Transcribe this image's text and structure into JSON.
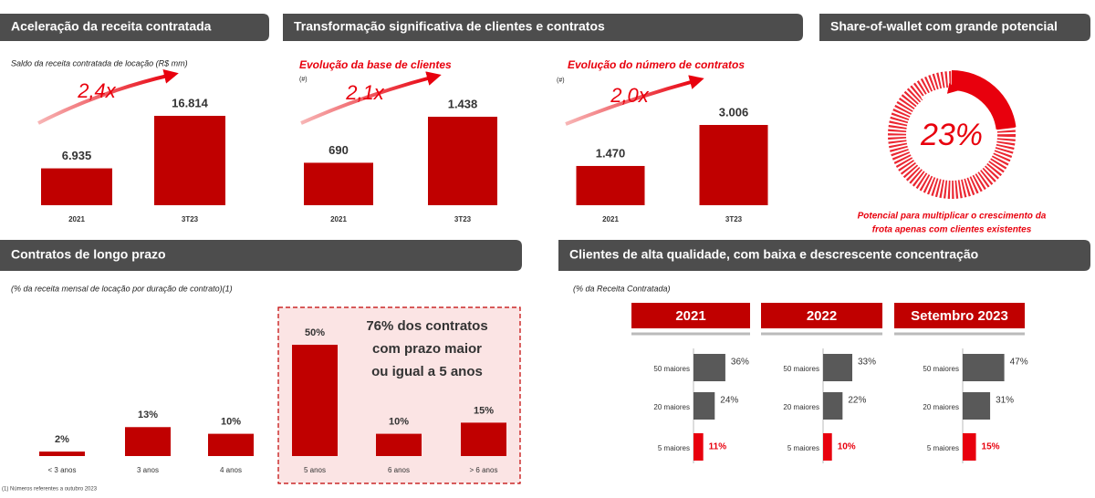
{
  "headers": [
    "Aceleração da receita contratada",
    "Transformação significativa de clientes e contratos",
    "Share-of-wallet com grande potencial",
    "Contratos de longo prazo",
    "Clientes de alta qualidade, com baixa e descrescente concentração"
  ],
  "chart_data": [
    {
      "type": "bar",
      "subtitle": "Saldo da receita contratada de locação (R$ mm)",
      "annotation": "2,4x",
      "categories": [
        "2021",
        "3T23"
      ],
      "values": [
        6935,
        16814
      ],
      "value_labels": [
        "6.935",
        "16.814"
      ],
      "color": "#c00000"
    },
    {
      "type": "bar",
      "subtitle": "Evolução da base de clientes",
      "unit": "(#)",
      "annotation": "2,1x",
      "categories": [
        "2021",
        "3T23"
      ],
      "values": [
        690,
        1438
      ],
      "value_labels": [
        "690",
        "1.438"
      ],
      "color": "#c00000"
    },
    {
      "type": "bar",
      "subtitle": "Evolução do número de contratos",
      "unit": "(#)",
      "annotation": "2,0x",
      "categories": [
        "2021",
        "3T23"
      ],
      "values": [
        1470,
        3006
      ],
      "value_labels": [
        "1.470",
        "3.006"
      ],
      "color": "#c00000"
    },
    {
      "type": "pie",
      "values": [
        23
      ],
      "value_labels": [
        "23%"
      ],
      "color": "#e8000d",
      "caption": [
        "Potencial para multiplicar o crescimento da",
        "frota apenas com clientes existentes"
      ]
    },
    {
      "type": "bar",
      "subtitle": "(% da receita mensal de locação por duração de contrato)(1)",
      "categories": [
        "< 3 anos",
        "3 anos",
        "4 anos",
        "5 anos",
        "6 anos",
        "> 6 anos"
      ],
      "values": [
        2,
        13,
        10,
        50,
        10,
        15
      ],
      "value_labels": [
        "2%",
        "13%",
        "10%",
        "50%",
        "10%",
        "15%"
      ],
      "color": "#c00000",
      "annotation": [
        "76% dos contratos",
        "com prazo maior",
        "ou igual a 5 anos"
      ],
      "footnote": "(1) Números referentes a outubro 2023"
    },
    {
      "type": "hbar",
      "subtitle": "(% da Receita Contratada)",
      "categories": [
        "50 maiores",
        "20 maiores",
        "5 maiores"
      ],
      "colors": [
        "#595959",
        "#595959",
        "#e8000d"
      ],
      "series": [
        {
          "name": "2021",
          "values": [
            36,
            24,
            11
          ],
          "value_labels": [
            "36%",
            "24%",
            "11%"
          ]
        },
        {
          "name": "2022",
          "values": [
            33,
            22,
            10
          ],
          "value_labels": [
            "33%",
            "22%",
            "10%"
          ]
        },
        {
          "name": "Setembro 2023",
          "values": [
            47,
            31,
            15
          ],
          "value_labels": [
            "47%",
            "31%",
            "15%"
          ]
        }
      ]
    }
  ]
}
